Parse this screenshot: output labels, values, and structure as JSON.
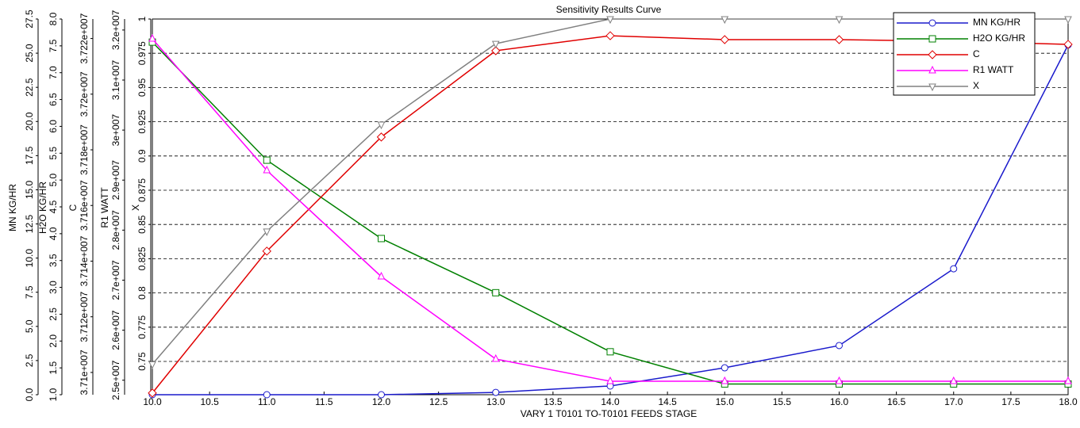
{
  "chart_data": {
    "type": "line",
    "title": "Sensitivity Results Curve",
    "x_label": "VARY   1 T0101 TO-T0101 FEEDS STAGE",
    "x": [
      10,
      11,
      12,
      13,
      14,
      15,
      16,
      17,
      18
    ],
    "xlim": [
      10,
      18
    ],
    "xticks": [
      {
        "value": 10,
        "label": "10.0"
      },
      10.5,
      {
        "value": 11,
        "label": "11.0"
      },
      11.5,
      {
        "value": 12,
        "label": "12.0"
      },
      12.5,
      {
        "value": 13,
        "label": "13.0"
      },
      13.5,
      {
        "value": 14,
        "label": "14.0"
      },
      14.5,
      {
        "value": 15,
        "label": "15.0"
      },
      15.5,
      {
        "value": 16,
        "label": "16.0"
      },
      16.5,
      {
        "value": 17,
        "label": "17.0"
      },
      17.5,
      {
        "value": 18,
        "label": "18.0"
      }
    ],
    "y_axes": [
      {
        "label": "MN KG/HR",
        "ylim": [
          0,
          27.5
        ],
        "yticks": [
          {
            "value": 0,
            "label": "0.0"
          },
          2.5,
          {
            "value": 5,
            "label": "5.0"
          },
          7.5,
          {
            "value": 10,
            "label": "10.0"
          },
          12.5,
          {
            "value": 15,
            "label": "15.0"
          },
          17.5,
          {
            "value": 20,
            "label": "20.0"
          },
          22.5,
          {
            "value": 25,
            "label": "25.0"
          },
          27.5
        ]
      },
      {
        "label": "H2O KG/HR",
        "ylim": [
          1,
          8
        ],
        "yticks": [
          {
            "value": 1,
            "label": "1.0"
          },
          1.5,
          {
            "value": 2,
            "label": "2.0"
          },
          2.5,
          {
            "value": 3,
            "label": "3.0"
          },
          3.5,
          {
            "value": 4,
            "label": "4.0"
          },
          4.5,
          {
            "value": 5,
            "label": "5.0"
          },
          5.5,
          {
            "value": 6,
            "label": "6.0"
          },
          6.5,
          {
            "value": 7,
            "label": "7.0"
          },
          7.5,
          {
            "value": 8,
            "label": "8.0"
          }
        ]
      },
      {
        "label": "C",
        "ylim": [
          37092000,
          37227000
        ],
        "yticks": [
          {
            "value": 37100000,
            "label": "3.71e+007"
          },
          {
            "value": 37120000,
            "label": "3.712e+007"
          },
          {
            "value": 37140000,
            "label": "3.714e+007"
          },
          {
            "value": 37160000,
            "label": "3.716e+007"
          },
          {
            "value": 37180000,
            "label": "3.718e+007"
          },
          {
            "value": 37200000,
            "label": "3.72e+007"
          },
          {
            "value": 37220000,
            "label": "3.722e+007"
          }
        ]
      },
      {
        "label": "R1 WATT",
        "ylim": [
          24710000,
          32220000
        ],
        "yticks": [
          {
            "value": 25000000,
            "label": "2.5e+007"
          },
          {
            "value": 26000000,
            "label": "2.6e+007"
          },
          {
            "value": 27000000,
            "label": "2.7e+007"
          },
          {
            "value": 28000000,
            "label": "2.8e+007"
          },
          {
            "value": 29000000,
            "label": "2.9e+007"
          },
          {
            "value": 30000000,
            "label": "3e+007"
          },
          {
            "value": 31000000,
            "label": "3.1e+007"
          },
          {
            "value": 32000000,
            "label": "3.2e+007"
          }
        ]
      },
      {
        "label": "X",
        "ylim": [
          0.7257,
          1
        ],
        "yticks": [
          0.75,
          0.775,
          0.8,
          0.825,
          0.85,
          0.875,
          0.9,
          0.925,
          0.95,
          0.975,
          1
        ]
      }
    ],
    "grid": true,
    "grid_axis": 4,
    "legend": "upper right",
    "series": [
      {
        "name": "MN KG/HR",
        "color": "#1a1acc",
        "marker": "circle",
        "axis": 0,
        "values": [
          0,
          0,
          0,
          0.17,
          0.64,
          1.97,
          3.6,
          9.22,
          25.6
        ]
      },
      {
        "name": "H2O KG/HR",
        "color": "#008000",
        "marker": "square",
        "axis": 1,
        "values": [
          7.57,
          5.37,
          3.91,
          2.9,
          1.8,
          1.2,
          1.2,
          1.2,
          1.2
        ]
      },
      {
        "name": "C",
        "color": "#e00000",
        "marker": "diamond",
        "axis": 2,
        "values": [
          37092600,
          37143600,
          37184600,
          37215600,
          37221000,
          37219600,
          37219600,
          37219000,
          37217900
        ]
      },
      {
        "name": "R1 WATT",
        "color": "#ff00ff",
        "marker": "triangle-up",
        "axis": 3,
        "values": [
          31824000,
          29194000,
          27071000,
          25423000,
          24979000,
          24979000,
          24979000,
          24979000,
          24979000
        ]
      },
      {
        "name": "X",
        "color": "#808080",
        "marker": "triangle-down",
        "axis": 4,
        "values": [
          0.748,
          0.845,
          0.923,
          0.982,
          1,
          1,
          1,
          1,
          1
        ]
      }
    ]
  }
}
